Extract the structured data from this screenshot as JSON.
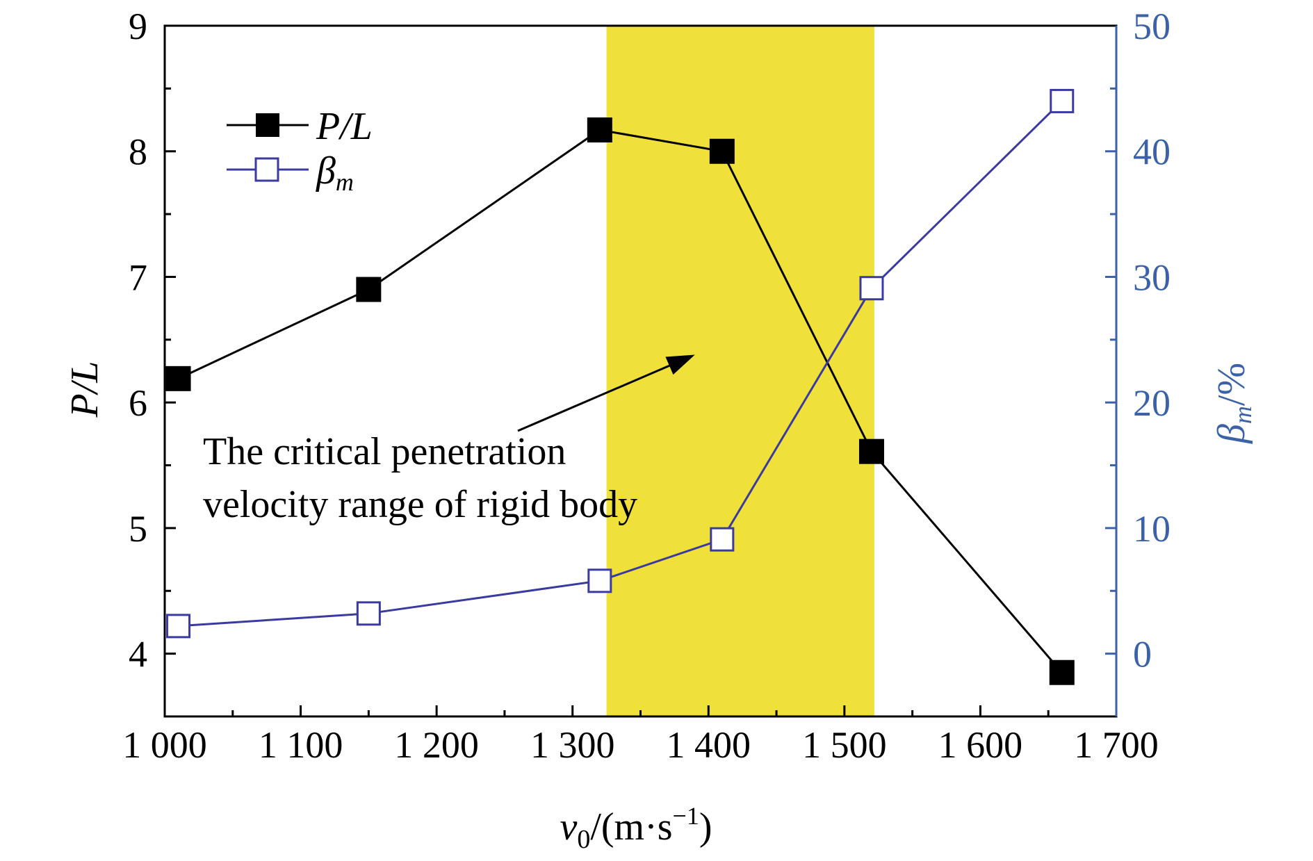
{
  "chart_data": {
    "type": "line",
    "x_axis": {
      "min": 1000,
      "max": 1700,
      "ticks": [
        1000,
        1100,
        1200,
        1300,
        1400,
        1500,
        1600,
        1700
      ],
      "tick_labels": [
        "1 000",
        "1 100",
        "1 200",
        "1 300",
        "1 400",
        "1 500",
        "1 600",
        "1 700"
      ],
      "label": {
        "v": "v",
        "sub": "0",
        "unit_open": "/(m·s",
        "sup": "−1",
        "unit_close": ")"
      }
    },
    "y_axis_left": {
      "min": 3.5,
      "max": 9,
      "ticks": [
        4,
        5,
        6,
        7,
        8,
        9
      ],
      "tick_labels": [
        "4",
        "5",
        "6",
        "7",
        "8",
        "9"
      ],
      "label": "P/L",
      "color": "#000000"
    },
    "y_axis_right": {
      "min": -5,
      "max": 50,
      "ticks": [
        0,
        10,
        20,
        30,
        40,
        50
      ],
      "tick_labels": [
        "0",
        "10",
        "20",
        "30",
        "40",
        "50"
      ],
      "label": {
        "symbol": "β",
        "sub": "m",
        "unit": "/%"
      },
      "color": "#3b62a8"
    },
    "series": [
      {
        "name": "P/L",
        "axis": "left",
        "marker": "filled-square",
        "color": "#000000",
        "x": [
          1010,
          1150,
          1320,
          1410,
          1520,
          1660
        ],
        "y": [
          6.19,
          6.9,
          8.17,
          8.0,
          5.61,
          3.85
        ]
      },
      {
        "name": "β",
        "name_sub": "m",
        "axis": "right",
        "marker": "open-square",
        "color": "#3b3aa0",
        "x": [
          1010,
          1150,
          1320,
          1410,
          1520,
          1660
        ],
        "y": [
          2.2,
          3.2,
          5.8,
          9.1,
          29.1,
          44.0
        ]
      }
    ],
    "highlight_band": {
      "x_start": 1325,
      "x_end": 1522,
      "color": "#f0e03a"
    },
    "annotation": {
      "lines": [
        "The critical penetration",
        "velocity range of rigid body"
      ],
      "arrow_to": {
        "x": 1390,
        "y_left": 6.38
      }
    },
    "legend": {
      "position": "top-left"
    },
    "grid": false
  }
}
